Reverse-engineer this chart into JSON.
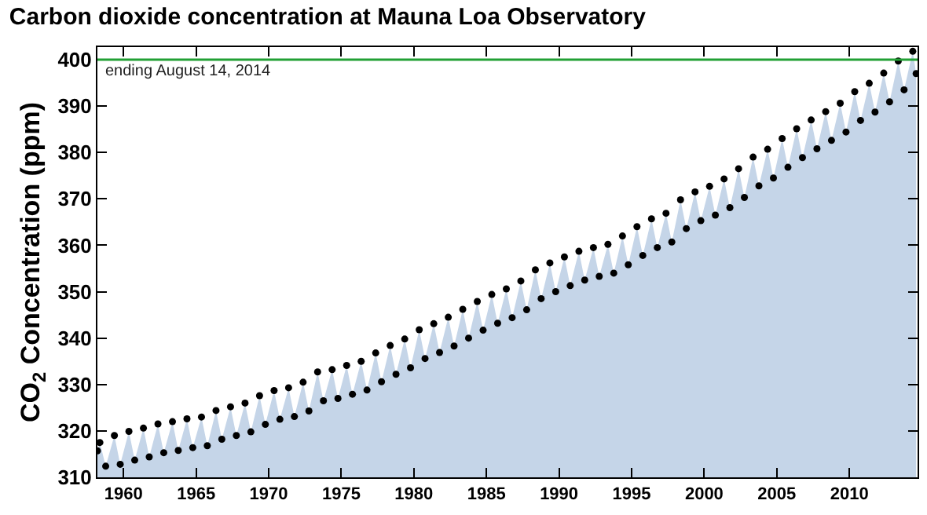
{
  "chart_data": {
    "type": "scatter",
    "title": "Carbon dioxide concentration at Mauna Loa Observatory",
    "ylabel": "CO$_{2}$ Concentration (ppm)",
    "x": [
      1958.2,
      1958.37,
      1958.77,
      1959.37,
      1959.77,
      1960.37,
      1960.77,
      1961.37,
      1961.77,
      1962.37,
      1962.77,
      1963.37,
      1963.77,
      1964.37,
      1964.77,
      1965.37,
      1965.77,
      1966.37,
      1966.77,
      1967.37,
      1967.77,
      1968.37,
      1968.77,
      1969.37,
      1969.77,
      1970.37,
      1970.77,
      1971.37,
      1971.77,
      1972.37,
      1972.77,
      1973.37,
      1973.77,
      1974.37,
      1974.77,
      1975.37,
      1975.77,
      1976.37,
      1976.77,
      1977.37,
      1977.77,
      1978.37,
      1978.77,
      1979.37,
      1979.77,
      1980.37,
      1980.77,
      1981.37,
      1981.77,
      1982.37,
      1982.77,
      1983.37,
      1983.77,
      1984.37,
      1984.77,
      1985.37,
      1985.77,
      1986.37,
      1986.77,
      1987.37,
      1987.77,
      1988.37,
      1988.77,
      1989.37,
      1989.77,
      1990.37,
      1990.77,
      1991.37,
      1991.77,
      1992.37,
      1992.77,
      1993.37,
      1993.77,
      1994.37,
      1994.77,
      1995.37,
      1995.77,
      1996.37,
      1996.77,
      1997.37,
      1997.77,
      1998.37,
      1998.77,
      1999.37,
      1999.77,
      2000.37,
      2000.77,
      2001.37,
      2001.77,
      2002.37,
      2002.77,
      2003.37,
      2003.77,
      2004.37,
      2004.77,
      2005.37,
      2005.77,
      2006.37,
      2006.77,
      2007.37,
      2007.77,
      2008.37,
      2008.77,
      2009.37,
      2009.77,
      2010.37,
      2010.77,
      2011.37,
      2011.77,
      2012.37,
      2012.77,
      2013.37,
      2013.77,
      2014.37,
      2014.6
    ],
    "series": [
      {
        "type": "area",
        "color": "#c5d5e8",
        "values": [
          315.7,
          317.5,
          312.4,
          319.0,
          312.8,
          319.9,
          313.7,
          320.6,
          314.4,
          321.5,
          315.3,
          322.0,
          315.8,
          322.6,
          316.4,
          323.0,
          316.8,
          324.4,
          318.2,
          325.2,
          319.0,
          326.0,
          319.8,
          327.6,
          321.4,
          328.7,
          322.5,
          329.3,
          323.1,
          330.5,
          324.3,
          332.7,
          326.5,
          333.2,
          327.0,
          334.1,
          327.9,
          335.0,
          328.8,
          336.8,
          330.6,
          338.4,
          332.2,
          339.8,
          333.6,
          341.8,
          335.6,
          343.1,
          336.9,
          344.5,
          338.3,
          346.2,
          340.0,
          347.9,
          341.7,
          349.4,
          343.2,
          350.6,
          344.4,
          352.3,
          346.1,
          354.7,
          348.5,
          356.2,
          350.0,
          357.5,
          351.3,
          358.7,
          352.5,
          359.5,
          353.3,
          360.2,
          354.0,
          362.0,
          355.8,
          364.0,
          357.8,
          365.7,
          359.5,
          366.9,
          360.7,
          369.8,
          363.6,
          371.5,
          365.3,
          372.7,
          366.5,
          374.3,
          368.1,
          376.5,
          370.3,
          379.0,
          372.8,
          380.7,
          374.5,
          383.0,
          376.8,
          385.1,
          378.9,
          387.0,
          380.8,
          388.8,
          382.6,
          390.6,
          384.4,
          393.1,
          386.9,
          394.9,
          388.7,
          397.1,
          390.9,
          399.7,
          393.5,
          401.8,
          397.0
        ]
      },
      {
        "color": "#000000",
        "marker": "circle",
        "values": [
          315.7,
          317.5,
          312.4,
          319.0,
          312.8,
          319.9,
          313.7,
          320.6,
          314.4,
          321.5,
          315.3,
          322.0,
          315.8,
          322.6,
          316.4,
          323.0,
          316.8,
          324.4,
          318.2,
          325.2,
          319.0,
          326.0,
          319.8,
          327.6,
          321.4,
          328.7,
          322.5,
          329.3,
          323.1,
          330.5,
          324.3,
          332.7,
          326.5,
          333.2,
          327.0,
          334.1,
          327.9,
          335.0,
          328.8,
          336.8,
          330.6,
          338.4,
          332.2,
          339.8,
          333.6,
          341.8,
          335.6,
          343.1,
          336.9,
          344.5,
          338.3,
          346.2,
          340.0,
          347.9,
          341.7,
          349.4,
          343.2,
          350.6,
          344.4,
          352.3,
          346.1,
          354.7,
          348.5,
          356.2,
          350.0,
          357.5,
          351.3,
          358.7,
          352.5,
          359.5,
          353.3,
          360.2,
          354.0,
          362.0,
          355.8,
          364.0,
          357.8,
          365.7,
          359.5,
          366.9,
          360.7,
          369.8,
          363.6,
          371.5,
          365.3,
          372.7,
          366.5,
          374.3,
          368.1,
          376.5,
          370.3,
          379.0,
          372.8,
          380.7,
          374.5,
          383.0,
          376.8,
          385.1,
          378.9,
          387.0,
          380.8,
          388.8,
          382.6,
          390.6,
          384.4,
          393.1,
          386.9,
          394.9,
          388.7,
          397.1,
          390.9,
          399.7,
          393.5,
          401.8,
          397.0
        ]
      }
    ],
    "xlim": [
      1958.2,
      2014.7
    ],
    "xticks": [
      1960,
      1965,
      1970,
      1975,
      1980,
      1985,
      1990,
      1995,
      2000,
      2005,
      2010
    ],
    "ylim": [
      310,
      402.7
    ],
    "yticks": [
      310,
      320,
      330,
      340,
      350,
      360,
      370,
      380,
      390,
      400
    ],
    "ref_lines": [
      {
        "axis": "y",
        "value": 400,
        "label": "ending August 14, 2014",
        "color": "#22a035"
      }
    ]
  }
}
